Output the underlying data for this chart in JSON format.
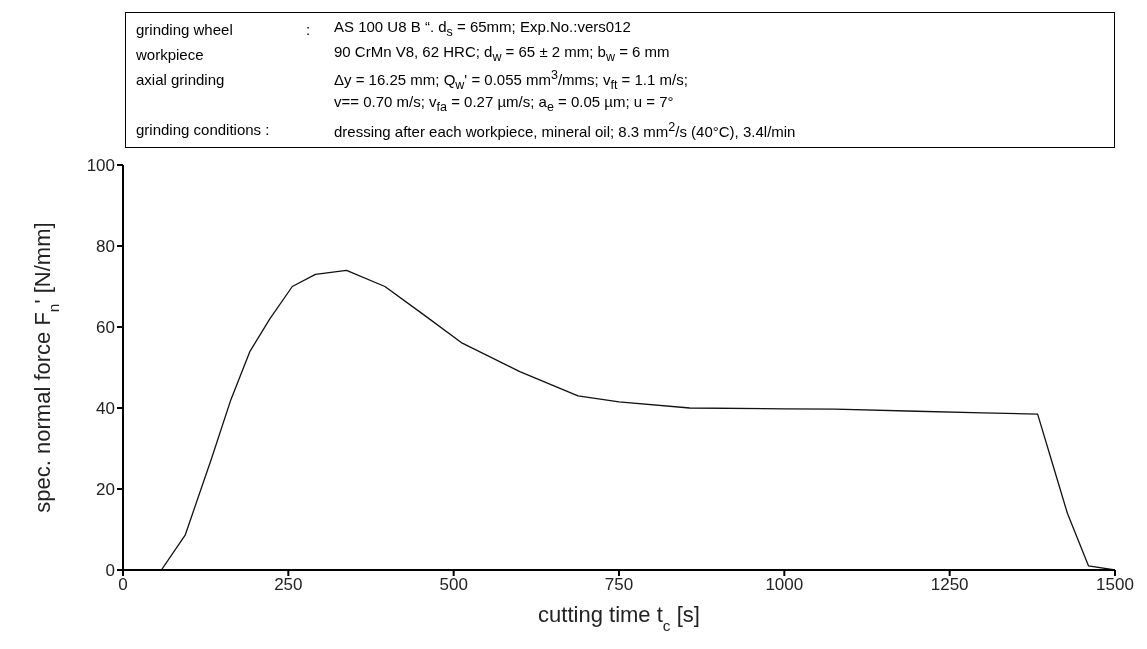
{
  "chart_data": {
    "type": "line",
    "xlabel": "cutting time t$_{c}$ [s]",
    "ylabel": "spec. normal force F$_{n}$' [N/mm]",
    "annotations": [
      "grinding wheel",
      ":",
      "AS   100 U8   B   “.        d$_{s}$ = 65mm; Exp.No.:vers012",
      "workpiece",
      "90 CrMn V8, 62 HRC; d$_{w}$ = 65 ± 2 mm; b$_{w}$ = 6 mm",
      "axial grinding",
      "Δy = 16.25 mm; Q$_{w}$' = 0.055 mm$^{3}$/mms; v$_{ft}$ = 1.1 m/s;",
      "v== 0.70 m/s; v$_{fa}$ = 0.27 µm/s; a$_{e}$ = 0.05 µm; u = 7°",
      "grinding conditions :",
      "dressing after each workpiece, mineral oil; 8.3 mm$^{2}$/s (40°C), 3.4l/min"
    ],
    "x": [
      0,
      30,
      58,
      94,
      134,
      163,
      192,
      222,
      256,
      291,
      338,
      396,
      455,
      513,
      600,
      688,
      750,
      857,
      1000,
      1077,
      1200,
      1300,
      1383,
      1406,
      1428,
      1460,
      1500
    ],
    "values": [
      0,
      0,
      0,
      8.6,
      27.6,
      42,
      54,
      62,
      70,
      73,
      74,
      70,
      63,
      56,
      49,
      43,
      41.5,
      40,
      39.8,
      39.7,
      39.2,
      38.8,
      38.5,
      26,
      14,
      1,
      0
    ],
    "color": "#111111",
    "xlim": [
      0,
      1500
    ],
    "xticks": [
      0,
      250,
      500,
      750,
      1000,
      1250,
      1500
    ],
    "ylim": [
      0,
      100
    ],
    "yticks": [
      0,
      20,
      40,
      60,
      80,
      100
    ],
    "marker": "none",
    "line_style": "solid"
  }
}
